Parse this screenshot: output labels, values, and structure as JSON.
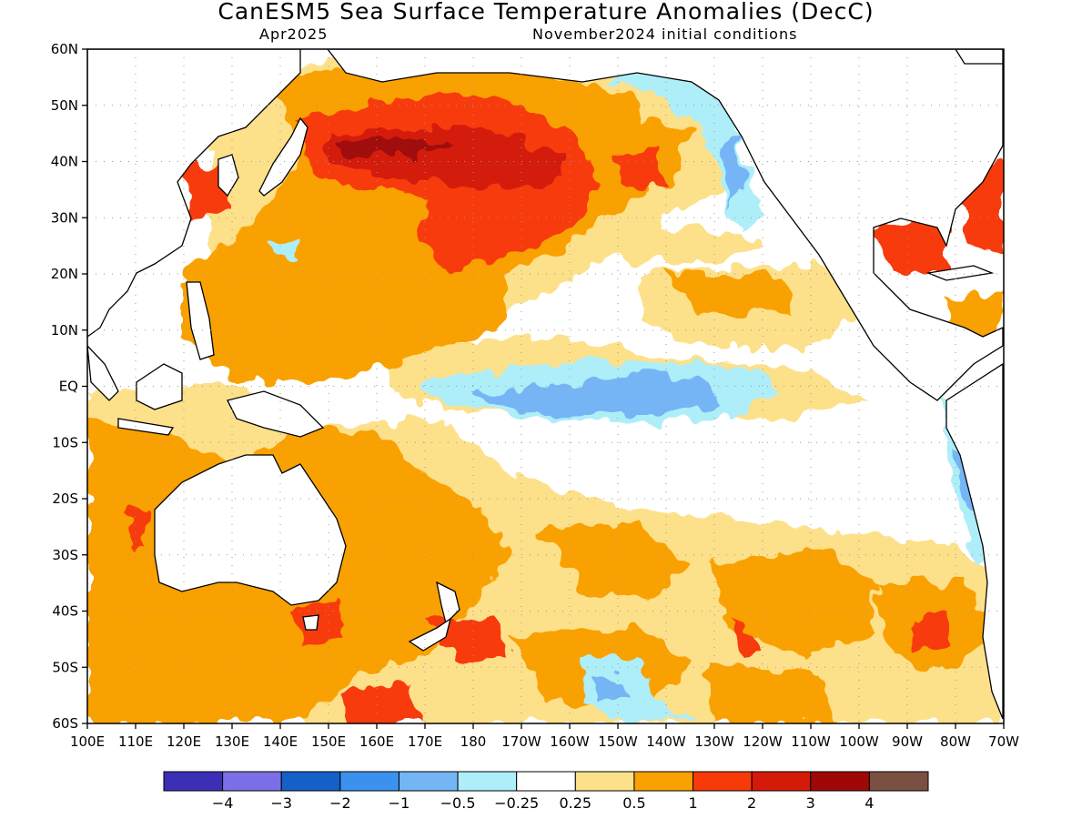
{
  "map": {
    "title": "CanESM5 Sea Surface Temperature Anomalies (DecC)",
    "valid_month": "Apr2025",
    "init_conditions": "November2024 initial conditions",
    "lat_ticks": [
      "60N",
      "50N",
      "40N",
      "30N",
      "20N",
      "10N",
      "EQ",
      "10S",
      "20S",
      "30S",
      "40S",
      "50S",
      "60S"
    ],
    "lon_ticks": [
      "100E",
      "110E",
      "120E",
      "130E",
      "140E",
      "150E",
      "160E",
      "170E",
      "180",
      "170W",
      "160W",
      "150W",
      "140W",
      "130W",
      "120W",
      "110W",
      "100W",
      "90W",
      "80W",
      "70W"
    ],
    "extent": {
      "lon_min": 100,
      "lon_max": 290,
      "lat_min": -60,
      "lat_max": 60
    },
    "grid": "dotted"
  },
  "colorbar": {
    "bins": [
      {
        "color": "#3b2fb5"
      },
      {
        "color": "#7b6fe8"
      },
      {
        "color": "#1560c8"
      },
      {
        "color": "#3a92ee"
      },
      {
        "color": "#74b5f6"
      },
      {
        "color": "#aeeef8"
      },
      {
        "color": "#ffffff"
      },
      {
        "color": "#fde08a"
      },
      {
        "color": "#f9a100"
      },
      {
        "color": "#f73a08"
      },
      {
        "color": "#d41a08"
      },
      {
        "color": "#a00808"
      },
      {
        "color": "#7a5042"
      }
    ],
    "labels": [
      "−4",
      "−3",
      "−2",
      "−1",
      "−0.5",
      "−0.25",
      "0.25",
      "0.5",
      "1",
      "2",
      "3",
      "4"
    ]
  },
  "fill_colors": {
    "light_yellow": "#fde08a",
    "orange": "#f9a100",
    "red_orange": "#f73a08",
    "red": "#d41a08",
    "dark_red": "#a00808",
    "brown": "#7a5042",
    "cyan": "#aeeef8",
    "light_blue": "#74b5f6",
    "blue": "#3a92ee",
    "dark_blue": "#1560c8",
    "purple": "#3b2fb5"
  }
}
